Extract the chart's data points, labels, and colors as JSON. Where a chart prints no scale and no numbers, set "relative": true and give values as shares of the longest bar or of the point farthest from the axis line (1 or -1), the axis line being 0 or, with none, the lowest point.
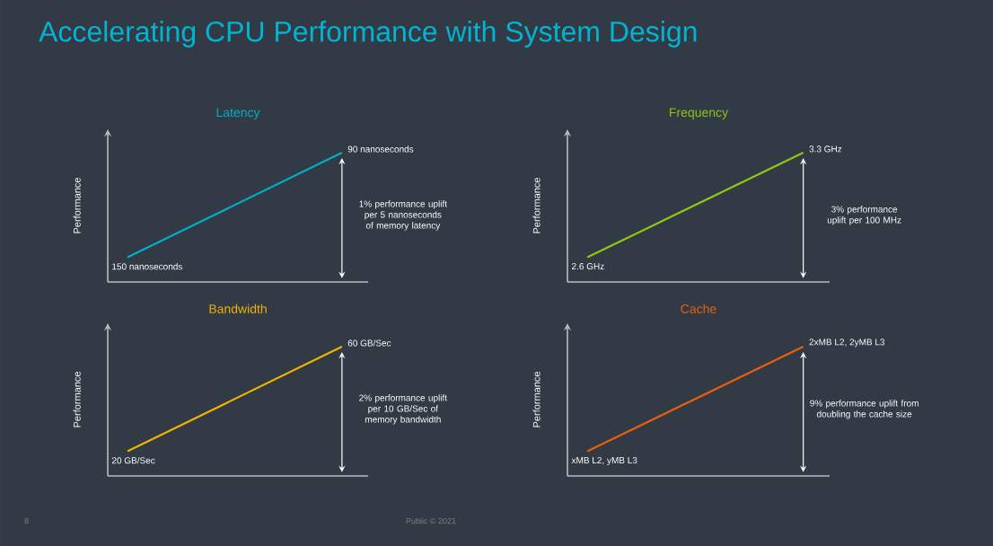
{
  "chart_data": [
    {
      "type": "other",
      "title": "Accelerating CPU Performance with System Design",
      "annotations": [
        "8",
        "Public © 2021"
      ]
    },
    {
      "type": "line",
      "title": "Latency",
      "ylabel": "Performance",
      "categories": [
        null,
        null
      ],
      "relative": true,
      "series": [
        {
          "color": "#00b0c8",
          "values": [
            0.19,
            1
          ]
        }
      ],
      "annotations": [
        "150 nanoseconds",
        "90 nanoseconds",
        "1% performance uplift per 5 nanoseconds of memory latency"
      ]
    },
    {
      "type": "line",
      "title": "Frequency",
      "ylabel": "Performance",
      "categories": [
        null,
        null
      ],
      "relative": true,
      "series": [
        {
          "color": "#8cc814",
          "values": [
            0.19,
            1
          ]
        }
      ],
      "annotations": [
        "2.6 GHz",
        "3.3 GHz",
        "3% performance uplift per 100 MHz"
      ]
    },
    {
      "type": "line",
      "title": "Bandwidth",
      "ylabel": "Performance",
      "categories": [
        null,
        null
      ],
      "relative": true,
      "series": [
        {
          "color": "#f0b400",
          "values": [
            0.19,
            1
          ]
        }
      ],
      "annotations": [
        "20 GB/Sec",
        "60 GB/Sec",
        "2% performance uplift per 10 GB/Sec of memory bandwidth"
      ]
    },
    {
      "type": "line",
      "title": "Cache",
      "ylabel": "Performance",
      "categories": [
        null,
        null
      ],
      "relative": true,
      "series": [
        {
          "color": "#e8600e",
          "values": [
            0.19,
            1
          ]
        }
      ],
      "annotations": [
        "xMB L2, yMB L3",
        "2xMB L2, 2yMB L3",
        "9% performance uplift from doubling the cache size"
      ]
    }
  ]
}
